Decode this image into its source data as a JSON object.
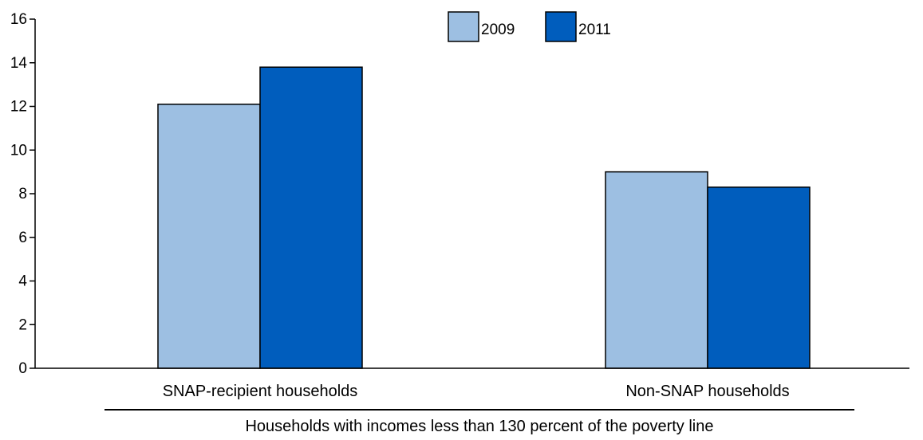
{
  "chart_data": {
    "type": "bar",
    "title": "",
    "xlabel": "Households with incomes less than 130 percent of the poverty line",
    "ylabel": "",
    "ylim": [
      0,
      16
    ],
    "yticks": [
      0,
      2,
      4,
      6,
      8,
      10,
      12,
      14,
      16
    ],
    "grid": false,
    "legend_position": "top-center",
    "categories": [
      "SNAP-recipient households",
      "Non-SNAP households"
    ],
    "series": [
      {
        "name": "2009",
        "values": [
          12.1,
          9.0
        ],
        "color": "#9dbfe2"
      },
      {
        "name": "2011",
        "values": [
          13.8,
          8.3
        ],
        "color": "#005dbd"
      }
    ]
  }
}
